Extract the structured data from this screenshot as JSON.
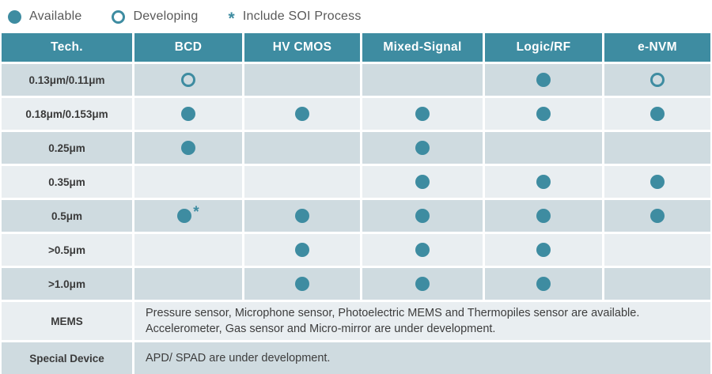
{
  "colors": {
    "teal": "#3e8ca1",
    "row_dark": "#cfdbe0",
    "row_light": "#e9eef1",
    "legend_text": "#595959",
    "header_text": "#ffffff"
  },
  "legend": {
    "available_label": "Available",
    "developing_label": "Developing",
    "soi_marker": "*",
    "soi_label": "Include SOI Process"
  },
  "table": {
    "columns": [
      "Tech.",
      "BCD",
      "HV CMOS",
      "Mixed-Signal",
      "Logic/RF",
      "e-NVM"
    ],
    "rows": [
      {
        "label": "0.13μm/0.11μm",
        "cells": [
          "developing",
          "none",
          "none",
          "available",
          "developing"
        ]
      },
      {
        "label": "0.18μm/0.153μm",
        "cells": [
          "available",
          "available",
          "available",
          "available",
          "available"
        ]
      },
      {
        "label": "0.25μm",
        "cells": [
          "available",
          "none",
          "available",
          "none",
          "none"
        ]
      },
      {
        "label": "0.35μm",
        "cells": [
          "none",
          "none",
          "available",
          "available",
          "available"
        ]
      },
      {
        "label": "0.5μm",
        "cells": [
          "available-soi",
          "available",
          "available",
          "available",
          "available"
        ]
      },
      {
        "label": ">0.5μm",
        "cells": [
          "none",
          "available",
          "available",
          "available",
          "none"
        ]
      },
      {
        "label": ">1.0μm",
        "cells": [
          "none",
          "available",
          "available",
          "available",
          "none"
        ]
      }
    ],
    "text_rows": [
      {
        "label": "MEMS",
        "lines": [
          "Pressure sensor, Microphone sensor, Photoelectric MEMS and Thermopiles sensor are available.",
          "Accelerometer, Gas sensor and Micro-mirror are under development."
        ]
      },
      {
        "label": "Special Device",
        "lines": [
          "APD/ SPAD are under development."
        ]
      }
    ]
  }
}
